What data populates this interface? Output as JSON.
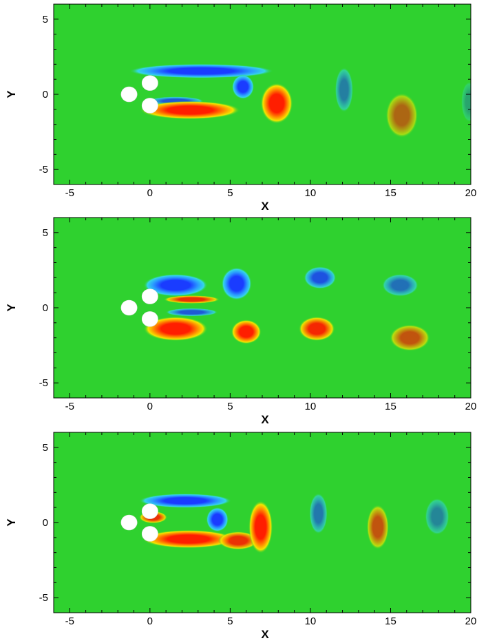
{
  "chart_data": [
    {
      "type": "heatmap",
      "xlabel": "X",
      "ylabel": "Y",
      "xlim": [
        -6,
        20
      ],
      "ylim": [
        -6,
        6
      ],
      "xticks": [
        -5,
        0,
        5,
        10,
        15,
        20
      ],
      "yticks": [
        -5,
        0,
        5
      ],
      "cylinders": [
        {
          "x": -1.3,
          "y": 0.0,
          "r": 0.5
        },
        {
          "x": 0.0,
          "y": 0.75,
          "r": 0.5
        },
        {
          "x": 0.0,
          "y": -0.75,
          "r": 0.5
        }
      ],
      "colors": {
        "background": "#2fd12f",
        "negative": "#1a3cff",
        "negative_mid": "#2a9bff",
        "negative_light": "#35d6e8",
        "positive": "#ff1e00",
        "positive_mid": "#ff8a00",
        "positive_light": "#f4e600"
      },
      "vortices": [
        {
          "x": 3.2,
          "y": 1.55,
          "rx": 3.6,
          "ry": 0.35,
          "sign": -1,
          "strength": 1.0
        },
        {
          "x": 5.8,
          "y": 0.5,
          "rx": 0.55,
          "ry": 0.6,
          "sign": -1,
          "strength": 1.0
        },
        {
          "x": 1.6,
          "y": -0.45,
          "rx": 1.4,
          "ry": 0.22,
          "sign": -1,
          "strength": 0.8
        },
        {
          "x": 2.5,
          "y": -1.05,
          "rx": 2.5,
          "ry": 0.45,
          "sign": 1,
          "strength": 1.0
        },
        {
          "x": 7.9,
          "y": -0.6,
          "rx": 0.8,
          "ry": 1.0,
          "sign": 1,
          "strength": 1.0
        },
        {
          "x": 12.1,
          "y": 0.3,
          "rx": 0.45,
          "ry": 1.1,
          "sign": -1,
          "strength": 0.55
        },
        {
          "x": 15.7,
          "y": -1.4,
          "rx": 0.8,
          "ry": 1.1,
          "sign": 1,
          "strength": 0.6
        },
        {
          "x": 19.9,
          "y": -0.5,
          "rx": 0.4,
          "ry": 1.0,
          "sign": -1,
          "strength": 0.3
        }
      ]
    },
    {
      "type": "heatmap",
      "xlabel": "X",
      "ylabel": "Y",
      "xlim": [
        -6,
        20
      ],
      "ylim": [
        -6,
        6
      ],
      "xticks": [
        -5,
        0,
        5,
        10,
        15,
        20
      ],
      "yticks": [
        -5,
        0,
        5
      ],
      "cylinders": [
        {
          "x": -1.3,
          "y": 0.0,
          "r": 0.5
        },
        {
          "x": 0.0,
          "y": 0.75,
          "r": 0.5
        },
        {
          "x": 0.0,
          "y": -0.75,
          "r": 0.5
        }
      ],
      "colors": {
        "background": "#2fd12f",
        "negative": "#1a3cff",
        "negative_mid": "#2a9bff",
        "negative_light": "#35d6e8",
        "positive": "#ff1e00",
        "positive_mid": "#ff8a00",
        "positive_light": "#f4e600"
      },
      "vortices": [
        {
          "x": 1.6,
          "y": 1.5,
          "rx": 1.6,
          "ry": 0.55,
          "sign": -1,
          "strength": 1.0
        },
        {
          "x": 2.6,
          "y": 0.55,
          "rx": 1.4,
          "ry": 0.2,
          "sign": 1,
          "strength": 0.9
        },
        {
          "x": 2.6,
          "y": -0.3,
          "rx": 1.3,
          "ry": 0.2,
          "sign": -1,
          "strength": 0.8
        },
        {
          "x": 1.6,
          "y": -1.4,
          "rx": 1.6,
          "ry": 0.6,
          "sign": 1,
          "strength": 1.0
        },
        {
          "x": 5.4,
          "y": 1.6,
          "rx": 0.75,
          "ry": 0.8,
          "sign": -1,
          "strength": 1.0
        },
        {
          "x": 6.0,
          "y": -1.6,
          "rx": 0.75,
          "ry": 0.6,
          "sign": 1,
          "strength": 1.0
        },
        {
          "x": 10.6,
          "y": 2.0,
          "rx": 0.8,
          "ry": 0.55,
          "sign": -1,
          "strength": 0.85
        },
        {
          "x": 10.4,
          "y": -1.4,
          "rx": 0.9,
          "ry": 0.6,
          "sign": 1,
          "strength": 0.95
        },
        {
          "x": 15.6,
          "y": 1.5,
          "rx": 0.9,
          "ry": 0.55,
          "sign": -1,
          "strength": 0.65
        },
        {
          "x": 16.2,
          "y": -2.0,
          "rx": 1.0,
          "ry": 0.65,
          "sign": 1,
          "strength": 0.7
        }
      ]
    },
    {
      "type": "heatmap",
      "xlabel": "X",
      "ylabel": "Y",
      "xlim": [
        -6,
        20
      ],
      "ylim": [
        -6,
        6
      ],
      "xticks": [
        -5,
        0,
        5,
        10,
        15,
        20
      ],
      "yticks": [
        -5,
        0,
        5
      ],
      "cylinders": [
        {
          "x": -1.3,
          "y": 0.0,
          "r": 0.5
        },
        {
          "x": 0.0,
          "y": 0.75,
          "r": 0.5
        },
        {
          "x": 0.0,
          "y": -0.75,
          "r": 0.5
        }
      ],
      "colors": {
        "background": "#2fd12f",
        "negative": "#1a3cff",
        "negative_mid": "#2a9bff",
        "negative_light": "#35d6e8",
        "positive": "#ff1e00",
        "positive_mid": "#ff8a00",
        "positive_light": "#f4e600"
      },
      "vortices": [
        {
          "x": 2.2,
          "y": 1.45,
          "rx": 2.3,
          "ry": 0.35,
          "sign": -1,
          "strength": 1.0
        },
        {
          "x": 4.2,
          "y": 0.2,
          "rx": 0.55,
          "ry": 0.6,
          "sign": -1,
          "strength": 1.0
        },
        {
          "x": 0.2,
          "y": 0.35,
          "rx": 0.7,
          "ry": 0.3,
          "sign": 1,
          "strength": 0.9
        },
        {
          "x": 2.4,
          "y": -1.1,
          "rx": 2.3,
          "ry": 0.45,
          "sign": 1,
          "strength": 1.0
        },
        {
          "x": 5.5,
          "y": -1.2,
          "rx": 1.0,
          "ry": 0.45,
          "sign": 1,
          "strength": 0.9
        },
        {
          "x": 6.9,
          "y": -0.3,
          "rx": 0.6,
          "ry": 1.3,
          "sign": 1,
          "strength": 1.0
        },
        {
          "x": 10.5,
          "y": 0.6,
          "rx": 0.45,
          "ry": 1.0,
          "sign": -1,
          "strength": 0.6
        },
        {
          "x": 14.2,
          "y": -0.3,
          "rx": 0.55,
          "ry": 1.1,
          "sign": 1,
          "strength": 0.7
        },
        {
          "x": 17.9,
          "y": 0.4,
          "rx": 0.6,
          "ry": 0.9,
          "sign": -1,
          "strength": 0.5
        }
      ]
    }
  ]
}
